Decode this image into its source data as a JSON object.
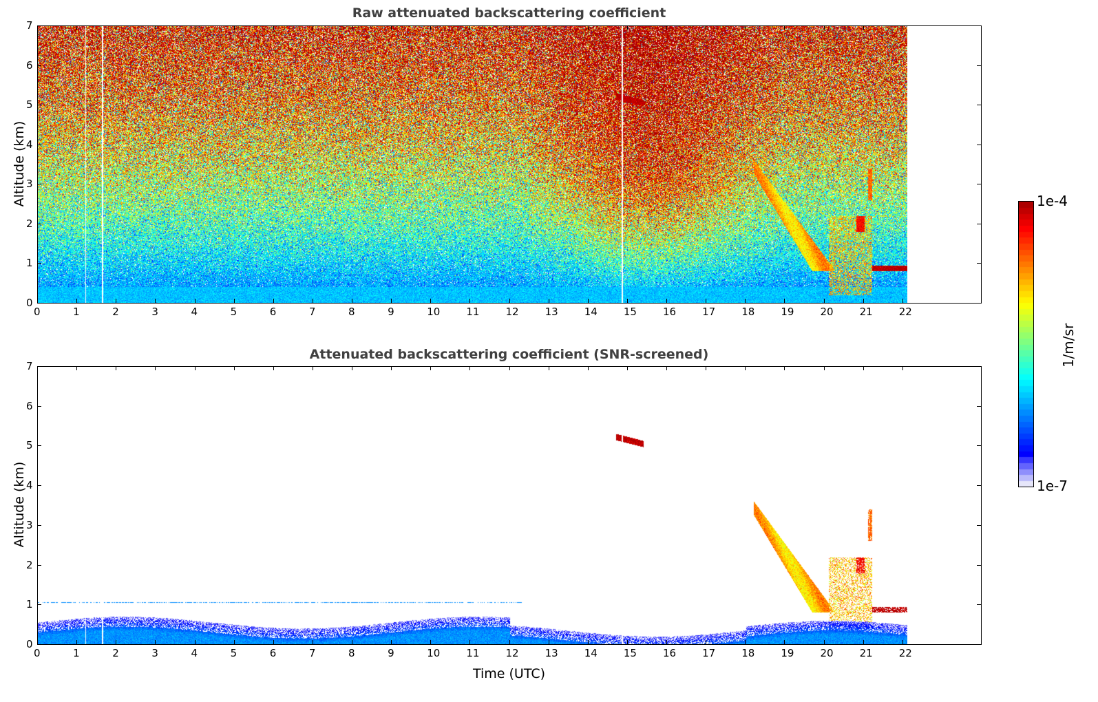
{
  "chart_data": [
    {
      "type": "heatmap",
      "title": "Raw attenuated backscattering coefficient",
      "xlabel": "",
      "ylabel": "Altitude (km)",
      "xlim": [
        0,
        24
      ],
      "ylim": [
        0,
        7
      ],
      "xticks": [
        "0",
        "1",
        "2",
        "3",
        "4",
        "5",
        "6",
        "7",
        "8",
        "9",
        "10",
        "11",
        "12",
        "13",
        "14",
        "15",
        "16",
        "17",
        "18",
        "19",
        "20",
        "21",
        "22"
      ],
      "yticks": [
        "0",
        "1",
        "2",
        "3",
        "4",
        "5",
        "6",
        "7"
      ],
      "data_end_time": 22.1,
      "missing_profiles": [
        1.22,
        1.65,
        14.85
      ],
      "features": [
        {
          "name": "boundary layer",
          "time": [
            0,
            22.1
          ],
          "altitude": [
            0,
            0.4
          ],
          "log10_value": -6.0
        },
        {
          "name": "daytime background noise",
          "time": [
            13,
            18.5
          ],
          "altitude": [
            2,
            7
          ],
          "log10_value": -4.6
        },
        {
          "name": "cloud patch",
          "time": [
            14.7,
            15.4
          ],
          "altitude": [
            5.0,
            5.25
          ],
          "log10_value": -4.1
        },
        {
          "name": "descending plume",
          "time": [
            18.3,
            20.2
          ],
          "altitude": [
            0.8,
            3.5
          ],
          "log10_value": -4.8
        },
        {
          "name": "low cloud",
          "time": [
            21.2,
            22.1
          ],
          "altitude": [
            0.8,
            0.95
          ],
          "log10_value": -4.05
        }
      ]
    },
    {
      "type": "heatmap",
      "title": "Attenuated backscattering coefficient (SNR-screened)",
      "xlabel": "Time (UTC)",
      "ylabel": "Altitude (km)",
      "xlim": [
        0,
        24
      ],
      "ylim": [
        0,
        7
      ],
      "xticks": [
        "0",
        "1",
        "2",
        "3",
        "4",
        "5",
        "6",
        "7",
        "8",
        "9",
        "10",
        "11",
        "12",
        "13",
        "14",
        "15",
        "16",
        "17",
        "18",
        "19",
        "20",
        "21",
        "22"
      ],
      "yticks": [
        "0",
        "1",
        "2",
        "3",
        "4",
        "5",
        "6",
        "7"
      ],
      "screened_layer_top_km": 1.05
    }
  ],
  "colorbar": {
    "label": "1/m/sr",
    "min_label": "1e-7",
    "max_label": "1e-4",
    "log10_range": [
      -7,
      -4
    ],
    "colormap": "jet"
  }
}
